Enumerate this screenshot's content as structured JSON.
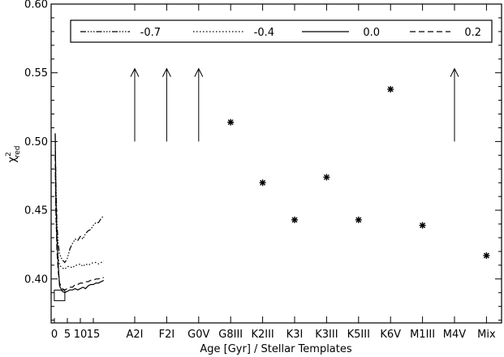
{
  "chart_data": {
    "type": "line",
    "xlabel": "Age [Gyr] / Stellar Templates",
    "ylabel_main": "χ",
    "ylabel_sup": "2",
    "ylabel_sub": "red",
    "ylim": [
      0.368,
      0.6
    ],
    "y_ticks": [
      "0.40",
      "0.45",
      "0.50",
      "0.55",
      "0.60"
    ],
    "y_tick_values": [
      0.4,
      0.45,
      0.5,
      0.55,
      0.6
    ],
    "age_ticks": [
      {
        "label": "0",
        "value": 0
      },
      {
        "label": "5",
        "value": 5
      },
      {
        "label": "10",
        "value": 10
      },
      {
        "label": "15",
        "value": 15
      }
    ],
    "templates": [
      "A2I",
      "F2I",
      "G0V",
      "G8III",
      "K2III",
      "K3I",
      "K3III",
      "K5III",
      "K6V",
      "M1III",
      "M4V",
      "Mix"
    ],
    "legend": [
      {
        "name": "-0.7",
        "dash": "7,2,1.5,2,1.5,2,1.5,2"
      },
      {
        "name": "-0.4",
        "dash": "1.5,2.5"
      },
      {
        "name": "0.0",
        "dash": ""
      },
      {
        "name": "0.2",
        "dash": "7,4"
      }
    ],
    "series": [
      {
        "name": "-0.7",
        "dash": "7,2,1.5,2,1.5,2,1.5,2",
        "x": [
          0.3,
          0.6,
          1,
          1.5,
          2,
          3,
          4,
          5,
          6,
          7,
          8,
          9,
          10,
          11,
          12,
          13,
          14,
          15,
          16,
          17,
          18,
          19
        ],
        "y": [
          0.505,
          0.47,
          0.44,
          0.425,
          0.418,
          0.414,
          0.412,
          0.415,
          0.422,
          0.426,
          0.429,
          0.428,
          0.431,
          0.429,
          0.433,
          0.435,
          0.436,
          0.439,
          0.441,
          0.441,
          0.444,
          0.446
        ]
      },
      {
        "name": "-0.4",
        "dash": "1.5,2.5",
        "x": [
          0.3,
          0.6,
          1,
          1.5,
          2,
          3,
          4,
          5,
          6,
          7,
          8,
          9,
          10,
          11,
          12,
          13,
          14,
          15,
          16,
          17,
          18,
          19
        ],
        "y": [
          0.48,
          0.445,
          0.425,
          0.415,
          0.41,
          0.408,
          0.407,
          0.409,
          0.409,
          0.408,
          0.41,
          0.41,
          0.411,
          0.409,
          0.411,
          0.41,
          0.411,
          0.412,
          0.412,
          0.411,
          0.412,
          0.413
        ]
      },
      {
        "name": "0.0",
        "dash": "",
        "x": [
          0.3,
          0.6,
          1,
          1.5,
          2,
          3,
          4,
          5,
          6,
          7,
          8,
          9,
          10,
          11,
          12,
          13,
          14,
          15,
          16,
          17,
          18,
          19
        ],
        "y": [
          0.506,
          0.46,
          0.43,
          0.41,
          0.395,
          0.391,
          0.39,
          0.391,
          0.392,
          0.392,
          0.393,
          0.392,
          0.393,
          0.394,
          0.393,
          0.395,
          0.396,
          0.396,
          0.397,
          0.397,
          0.398,
          0.399
        ]
      },
      {
        "name": "0.2",
        "dash": "7,4",
        "x": [
          0.3,
          0.6,
          1,
          1.5,
          2,
          3,
          4,
          5,
          6,
          7,
          8,
          9,
          10,
          11,
          12,
          13,
          14,
          15,
          16,
          17,
          18,
          19
        ],
        "y": [
          0.49,
          0.45,
          0.42,
          0.405,
          0.397,
          0.393,
          0.392,
          0.393,
          0.394,
          0.394,
          0.396,
          0.396,
          0.397,
          0.397,
          0.398,
          0.398,
          0.399,
          0.399,
          0.4,
          0.4,
          0.401,
          0.401
        ]
      }
    ],
    "best_fit_box": {
      "x": 2,
      "y": 0.388
    },
    "arrows": [
      {
        "template": "A2I",
        "from_y": 0.5,
        "to_y": 0.553
      },
      {
        "template": "F2I",
        "from_y": 0.5,
        "to_y": 0.553
      },
      {
        "template": "G0V",
        "from_y": 0.5,
        "to_y": 0.553
      },
      {
        "template": "M4V",
        "from_y": 0.5,
        "to_y": 0.553
      }
    ],
    "template_points": [
      {
        "template": "G8III",
        "y": 0.514
      },
      {
        "template": "K2III",
        "y": 0.47
      },
      {
        "template": "K3I",
        "y": 0.443
      },
      {
        "template": "K3III",
        "y": 0.474
      },
      {
        "template": "K5III",
        "y": 0.443
      },
      {
        "template": "K6V",
        "y": 0.538
      },
      {
        "template": "M1III",
        "y": 0.439
      },
      {
        "template": "Mix",
        "y": 0.417
      }
    ]
  }
}
